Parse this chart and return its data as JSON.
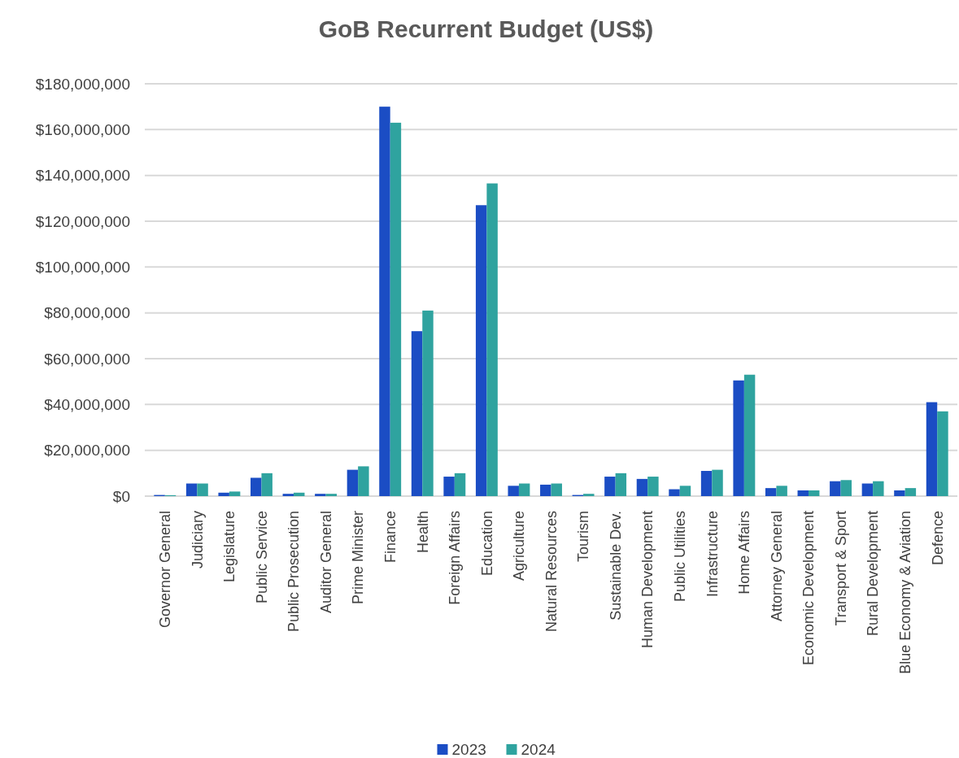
{
  "chart_data": {
    "type": "bar",
    "title": "GoB Recurrent Budget (US$)",
    "categories": [
      "Governor General",
      "Judiciary",
      "Legislature",
      "Public Service",
      "Public Prosecution",
      "Auditor General",
      "Prime Minister",
      "Finance",
      "Health",
      "Foreign Affairs",
      "Education",
      "Agriculture",
      "Natural Resources",
      "Tourism",
      "Sustainable Dev.",
      "Human Development",
      "Public Utilities",
      "Infrastructure",
      "Home Affairs",
      "Attorney General",
      "Economic Development",
      "Transport & Sport",
      "Rural Development",
      "Blue Economy & Aviation",
      "Defence"
    ],
    "series": [
      {
        "name": "2023",
        "color": "#1b4dc4",
        "values": [
          500000,
          5500000,
          1500000,
          8000000,
          1000000,
          1000000,
          11500000,
          170000000,
          72000000,
          8500000,
          127000000,
          4500000,
          5000000,
          500000,
          8500000,
          7500000,
          3000000,
          11000000,
          50500000,
          3500000,
          2500000,
          6500000,
          5500000,
          2500000,
          41000000
        ]
      },
      {
        "name": "2024",
        "color": "#2fa39f",
        "values": [
          400000,
          5500000,
          2000000,
          10000000,
          1500000,
          1000000,
          13000000,
          163000000,
          81000000,
          10000000,
          136500000,
          5500000,
          5500000,
          1000000,
          10000000,
          8500000,
          4500000,
          11500000,
          53000000,
          4500000,
          2500000,
          7000000,
          6500000,
          3500000,
          37000000
        ]
      }
    ],
    "ylim": [
      0,
      180000000
    ],
    "yticks": [
      {
        "value": 0,
        "label": "$0"
      },
      {
        "value": 20000000,
        "label": "$20,000,000"
      },
      {
        "value": 40000000,
        "label": "$40,000,000"
      },
      {
        "value": 60000000,
        "label": "$60,000,000"
      },
      {
        "value": 80000000,
        "label": "$80,000,000"
      },
      {
        "value": 100000000,
        "label": "$100,000,000"
      },
      {
        "value": 120000000,
        "label": "$120,000,000"
      },
      {
        "value": 140000000,
        "label": "$140,000,000"
      },
      {
        "value": 160000000,
        "label": "$160,000,000"
      },
      {
        "value": 180000000,
        "label": "$180,000,000"
      }
    ],
    "grid": "y",
    "legend": "bottom"
  }
}
